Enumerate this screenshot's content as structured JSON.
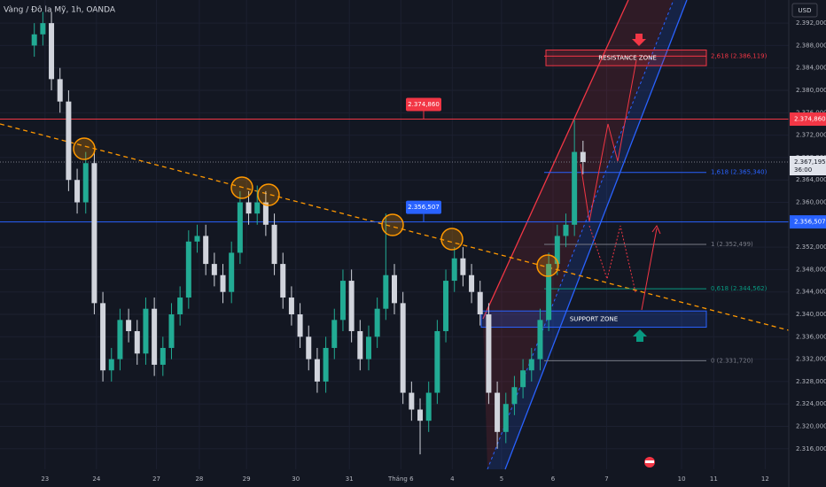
{
  "chart_data": {
    "type": "candlestick",
    "title": "Vàng / Đô la Mỹ, 1h, OANDA",
    "currency": "USD",
    "countdown": "36:00",
    "up_color": "#22ab94",
    "down_color": "#d1d4dc",
    "grid": true,
    "xlim": [
      0,
      368
    ],
    "ylim": [
      2309.17,
      2396.13
    ],
    "xticks": [
      {
        "value": 21,
        "label": "23"
      },
      {
        "value": 45,
        "label": "24"
      },
      {
        "value": 73,
        "label": "27"
      },
      {
        "value": 93,
        "label": "28"
      },
      {
        "value": 115,
        "label": "29"
      },
      {
        "value": 138,
        "label": "30"
      },
      {
        "value": 163,
        "label": "31"
      },
      {
        "value": 187,
        "label": "Tháng 6"
      },
      {
        "value": 211,
        "label": "4"
      },
      {
        "value": 234,
        "label": "5"
      },
      {
        "value": 258,
        "label": "6"
      },
      {
        "value": 283,
        "label": "7"
      },
      {
        "value": 318,
        "label": "10"
      },
      {
        "value": 333,
        "label": "11"
      },
      {
        "value": 357,
        "label": "12"
      }
    ],
    "yticks": [
      {
        "value": 2392,
        "label": "2.392,000"
      },
      {
        "value": 2388,
        "label": "2.388,000"
      },
      {
        "value": 2384,
        "label": "2.384,000"
      },
      {
        "value": 2380,
        "label": "2.380,000"
      },
      {
        "value": 2376,
        "label": "2.376,000"
      },
      {
        "value": 2372,
        "label": "2.372,000"
      },
      {
        "value": 2368,
        "label": "2.368,000"
      },
      {
        "value": 2364,
        "label": "2.364,000"
      },
      {
        "value": 2360,
        "label": "2.360,000"
      },
      {
        "value": 2352,
        "label": "2.352,000"
      },
      {
        "value": 2348,
        "label": "2.348,000"
      },
      {
        "value": 2344,
        "label": "2.344,000"
      },
      {
        "value": 2340,
        "label": "2.340,000"
      },
      {
        "value": 2336,
        "label": "2.336,000"
      },
      {
        "value": 2332,
        "label": "2.332,000"
      },
      {
        "value": 2328,
        "label": "2.328,000"
      },
      {
        "value": 2324,
        "label": "2.324,000"
      },
      {
        "value": 2320,
        "label": "2.320,000"
      },
      {
        "value": 2316,
        "label": "2.316,000"
      }
    ],
    "x": [
      16,
      20,
      24,
      28,
      32,
      36,
      40,
      44,
      48,
      52,
      56,
      60,
      64,
      68,
      72,
      76,
      80,
      84,
      88,
      92,
      96,
      100,
      104,
      108,
      112,
      116,
      120,
      124,
      128,
      132,
      136,
      140,
      144,
      148,
      152,
      156,
      160,
      164,
      168,
      172,
      176,
      180,
      184,
      188,
      192,
      196,
      200,
      204,
      208,
      212,
      216,
      220,
      224,
      228,
      232,
      236,
      240,
      244,
      248,
      252,
      256,
      260,
      264,
      268,
      272
    ],
    "open": [
      2388,
      2390,
      2392,
      2382,
      2378,
      2364,
      2360,
      2367,
      2342,
      2330,
      2332,
      2339,
      2337,
      2333,
      2341,
      2331,
      2334,
      2340,
      2343,
      2353,
      2354,
      2349,
      2347,
      2344,
      2351,
      2360,
      2358,
      2360,
      2356,
      2349,
      2343,
      2340,
      2336,
      2332,
      2328,
      2334,
      2339,
      2346,
      2337,
      2332,
      2336,
      2341,
      2347,
      2342,
      2326,
      2323,
      2321,
      2326,
      2337,
      2346,
      2350,
      2347,
      2344,
      2340,
      2326,
      2319,
      2324,
      2327,
      2330,
      2332,
      2339,
      2349,
      2354,
      2356,
      2369
    ],
    "high": [
      2392,
      2394,
      2394,
      2384,
      2380,
      2366,
      2369,
      2369,
      2344,
      2334,
      2341,
      2341,
      2339,
      2343,
      2343,
      2336,
      2342,
      2345,
      2355,
      2356,
      2356,
      2351,
      2349,
      2353,
      2362,
      2362,
      2363,
      2362,
      2358,
      2351,
      2345,
      2342,
      2338,
      2334,
      2336,
      2341,
      2348,
      2348,
      2339,
      2338,
      2343,
      2358,
      2349,
      2344,
      2328,
      2325,
      2328,
      2339,
      2348,
      2352,
      2352,
      2349,
      2346,
      2342,
      2328,
      2326,
      2329,
      2332,
      2334,
      2341,
      2351,
      2356,
      2358,
      2374.7,
      2371
    ],
    "low": [
      2386,
      2388,
      2380,
      2376,
      2362,
      2358,
      2358,
      2340,
      2328,
      2328,
      2330,
      2335,
      2331,
      2331,
      2329,
      2329,
      2332,
      2338,
      2341,
      2351,
      2347,
      2345,
      2342,
      2342,
      2349,
      2356,
      2356,
      2354,
      2347,
      2341,
      2338,
      2334,
      2330,
      2326,
      2326,
      2332,
      2337,
      2335,
      2330,
      2330,
      2334,
      2339,
      2340,
      2324,
      2321,
      2315,
      2319,
      2324,
      2335,
      2344,
      2345,
      2342,
      2338,
      2324,
      2316,
      2317,
      2322,
      2325,
      2328,
      2330,
      2337,
      2347,
      2352,
      2354,
      2365
    ],
    "close": [
      2390,
      2392,
      2382,
      2378,
      2364,
      2360,
      2367,
      2342,
      2330,
      2332,
      2339,
      2337,
      2333,
      2341,
      2331,
      2334,
      2340,
      2343,
      2353,
      2354,
      2349,
      2347,
      2344,
      2351,
      2360,
      2358,
      2360,
      2356,
      2349,
      2343,
      2340,
      2336,
      2332,
      2328,
      2334,
      2339,
      2346,
      2337,
      2332,
      2336,
      2341,
      2347,
      2342,
      2326,
      2323,
      2321,
      2326,
      2337,
      2346,
      2350,
      2347,
      2344,
      2340,
      2326,
      2319,
      2324,
      2327,
      2330,
      2332,
      2339,
      2349,
      2354,
      2356,
      2369,
      2367.195
    ],
    "current_price": {
      "value": 2367.195,
      "label": "2.367,195"
    },
    "price_lines": [
      {
        "value": 2374.86,
        "label": "2.374,860",
        "color": "#f23645"
      },
      {
        "value": 2356.507,
        "label": "2.356,507",
        "color": "#2962ff"
      }
    ],
    "fib_levels": [
      {
        "value": 2386.119,
        "label": "2,618 (2.386,119)",
        "color": "#f23645"
      },
      {
        "value": 2365.34,
        "label": "1,618 (2.365,340)",
        "color": "#2962ff"
      },
      {
        "value": 2352.499,
        "label": "1 (2.352,499)",
        "color": "#787b86"
      },
      {
        "value": 2344.562,
        "label": "0,618 (2.344,562)",
        "color": "#089981"
      },
      {
        "value": 2331.72,
        "label": "0 (2.331,720)",
        "color": "#787b86"
      }
    ],
    "zones": [
      {
        "label": "RESISTANCE ZONE",
        "range": [
          2384.4,
          2387.2
        ],
        "color": "#f23645"
      },
      {
        "label": "SUPPORT ZONE",
        "range": [
          2337.7,
          2340.6
        ],
        "color": "#2962ff"
      }
    ]
  }
}
